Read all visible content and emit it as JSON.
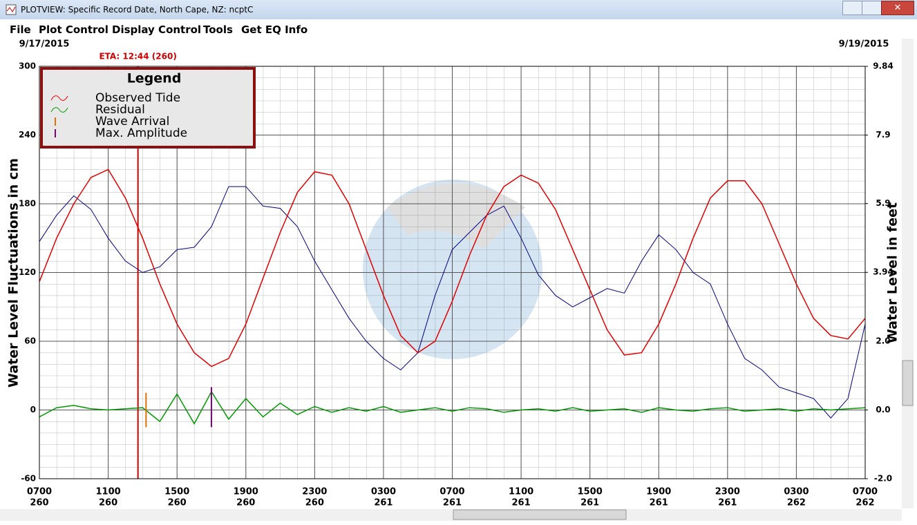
{
  "window": {
    "title": "PLOTVIEW: Specific Record Date, North Cape, NZ: ncptC",
    "menu": [
      "File",
      "Plot Control",
      "Display Control",
      "Tools",
      "Get EQ Info"
    ]
  },
  "chart_data": {
    "type": "line",
    "start_date": "9/17/2015",
    "end_date": "9/19/2015",
    "y_label": "Water Level Fluctuations in cm",
    "y2_label": "Water Level in feet",
    "legend_title": "Legend",
    "legend": "upper left",
    "grid": true,
    "x": [
      0,
      1,
      2,
      3,
      4,
      5,
      6,
      7,
      8,
      9,
      10,
      11,
      12,
      13,
      14,
      15,
      16,
      17,
      18,
      19,
      20,
      21,
      22,
      23,
      24,
      25,
      26,
      27,
      28,
      29,
      30,
      31,
      32,
      33,
      34,
      35,
      36,
      37,
      38,
      39,
      40,
      41,
      42,
      43,
      44,
      45,
      46,
      47,
      48
    ],
    "xlim": [
      0,
      48
    ],
    "xticks": [
      {
        "value": 0,
        "label": "0700"
      },
      {
        "value": 4,
        "label": "1100"
      },
      {
        "value": 8,
        "label": "1500"
      },
      {
        "value": 12,
        "label": "1900"
      },
      {
        "value": 16,
        "label": "2300"
      },
      {
        "value": 20,
        "label": "0300"
      },
      {
        "value": 24,
        "label": "0700"
      },
      {
        "value": 28,
        "label": "1100"
      },
      {
        "value": 32,
        "label": "1500"
      },
      {
        "value": 36,
        "label": "1900"
      },
      {
        "value": 40,
        "label": "2300"
      },
      {
        "value": 44,
        "label": "0300"
      },
      {
        "value": 48,
        "label": "0700"
      }
    ],
    "x_day_labels": [
      "260",
      "260",
      "260",
      "260",
      "260",
      "261",
      "261",
      "261",
      "261",
      "261",
      "261",
      "262",
      "262"
    ],
    "ylim": [
      -60,
      300
    ],
    "yticks": [
      -60,
      0,
      60,
      120,
      180,
      240,
      300
    ],
    "y2lim": [
      -1.97,
      9.84
    ],
    "y2ticks": [
      {
        "value": -1.97,
        "label": "-2.0"
      },
      {
        "value": 0,
        "label": "0.0"
      },
      {
        "value": 1.97,
        "label": "2.0"
      },
      3.94,
      {
        "value": 5.91,
        "label": "5.9"
      },
      {
        "value": 7.87,
        "label": "7.9"
      },
      9.84
    ],
    "series": [
      {
        "name": "Observed Tide",
        "color": "#e00000",
        "values": [
          112,
          150,
          180,
          203,
          210,
          185,
          150,
          110,
          75,
          50,
          38,
          45,
          75,
          115,
          155,
          190,
          208,
          205,
          180,
          140,
          100,
          65,
          50,
          60,
          95,
          135,
          170,
          195,
          205,
          198,
          175,
          140,
          105,
          70,
          48,
          50,
          75,
          110,
          150,
          185,
          200,
          200,
          180,
          145,
          110,
          80,
          65,
          62,
          80
        ]
      },
      {
        "name": "Residual",
        "color": "#009900",
        "values": [
          -6,
          2,
          4,
          1,
          0,
          1,
          2,
          -10,
          14,
          -12,
          16,
          -8,
          10,
          -6,
          6,
          -4,
          3,
          -2,
          2,
          -1,
          3,
          -2,
          0,
          2,
          -1,
          2,
          1,
          -2,
          0,
          1,
          -1,
          2,
          -1,
          0,
          1,
          -2,
          2,
          0,
          -1,
          1,
          2,
          -1,
          0,
          1,
          -1,
          1,
          0,
          1,
          2
        ]
      },
      {
        "color": "#000080",
        "values": [
          147,
          170,
          187,
          175,
          150,
          130,
          120,
          125,
          140,
          142,
          160,
          195,
          195,
          178,
          176,
          160,
          130,
          105,
          80,
          60,
          45,
          35,
          50,
          100,
          140,
          155,
          170,
          178,
          150,
          118,
          100,
          90,
          98,
          106,
          102,
          130,
          153,
          140,
          120,
          110,
          75,
          45,
          35,
          20,
          15,
          10,
          -7,
          10,
          75
        ]
      }
    ],
    "markers": [
      {
        "name": "Wave Arrival",
        "color": "#e07000",
        "x": 6.2,
        "span": [
          15,
          -15
        ]
      },
      {
        "name": "Max. Amplitude",
        "color": "#800080",
        "x": 10,
        "span": [
          20,
          -15
        ]
      }
    ],
    "eta": {
      "label": "ETA: 12:44 (260)",
      "x": 5.73,
      "color": "#cc0000"
    }
  }
}
